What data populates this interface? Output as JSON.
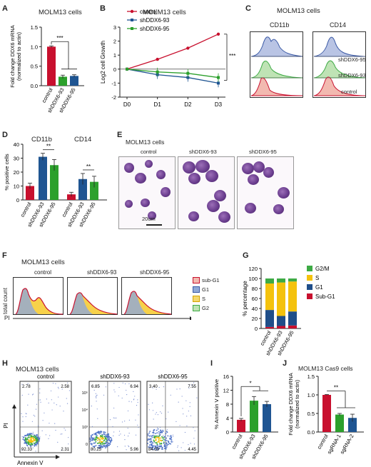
{
  "labels": {
    "A": "A",
    "B": "B",
    "C": "C",
    "D": "D",
    "E": "E",
    "F": "F",
    "G": "G",
    "H": "H",
    "I": "I",
    "J": "J"
  },
  "colors": {
    "control": "#c8102e",
    "shDDX6_93": "#2ca02c",
    "shDDX6_95": "#1f5592",
    "g1": "#1f4e89",
    "s": "#f4c20d",
    "g2m": "#3daa44",
    "subg1": "#c8102e"
  },
  "panelA": {
    "title": "MOLM13 cells",
    "chart_data": {
      "type": "bar",
      "categories": [
        "control",
        "shDDX6-93",
        "shDDX6-95"
      ],
      "values": [
        1.0,
        0.23,
        0.25
      ],
      "errors": [
        0.02,
        0.04,
        0.03
      ],
      "ylabel": "Fold change DDX6 mRNA\n(normalized to actin)",
      "ylim": [
        0,
        1.5
      ],
      "yticks": [
        "0.0",
        "0.5",
        "1.0",
        "1.5"
      ],
      "annotation": "***"
    }
  },
  "panelB": {
    "title": "MOLM13 cells",
    "chart_data": {
      "type": "line",
      "x": [
        "D0",
        "D1",
        "D2",
        "D3"
      ],
      "series": [
        {
          "name": "control",
          "values": [
            0,
            0.7,
            1.5,
            2.5
          ]
        },
        {
          "name": "shDDX6-93",
          "values": [
            0,
            -0.4,
            -0.6,
            -1.0
          ]
        },
        {
          "name": "shDDX6-95",
          "values": [
            0,
            -0.2,
            -0.3,
            -0.6
          ]
        }
      ],
      "ylabel": "Log2 cell Growth",
      "ylim": [
        -2,
        3
      ],
      "yticks": [
        "-2",
        "-1",
        "0",
        "1",
        "2",
        "3"
      ],
      "annotation": "***"
    }
  },
  "panelC": {
    "title": "MOLM13 cells",
    "markers": [
      "CD11b",
      "CD14"
    ],
    "rows": [
      "shDDX6-95",
      "shDDX6-93",
      "control"
    ]
  },
  "panelD": {
    "markers": [
      "CD11b",
      "CD14"
    ],
    "chart_data": {
      "type": "bar",
      "categories": [
        "control",
        "shDDX6-93",
        "shDDX6-95",
        "control",
        "shDDX6-93",
        "shDDX6-95"
      ],
      "groups": [
        "CD11b",
        "CD14"
      ],
      "values": [
        10,
        31,
        25,
        4,
        15,
        13
      ],
      "errors": [
        2,
        2.5,
        4,
        1.5,
        4,
        4
      ],
      "ylabel": "% positive cells",
      "ylim": [
        0,
        40
      ],
      "yticks": [
        "0",
        "10",
        "20",
        "30",
        "40"
      ],
      "annotations": [
        "**",
        "**"
      ]
    }
  },
  "panelE": {
    "title": "MOLM13 cells",
    "images": [
      "control",
      "shDDX6-93",
      "shDDX6-95"
    ],
    "scale": "20um"
  },
  "panelF": {
    "title": "MOLM13 cells",
    "histograms": [
      "control",
      "shDDX6-93",
      "shDDX6-95"
    ],
    "ylabel": "total count",
    "xlabel": "PI",
    "legend": [
      "sub-G1",
      "G1",
      "S",
      "G2"
    ]
  },
  "panelG": {
    "chart_data": {
      "type": "bar",
      "stacked": true,
      "categories": [
        "control",
        "shDDX6-93",
        "shDDX6-95"
      ],
      "series": [
        {
          "name": "Sub-G1",
          "values": [
            3,
            5,
            6
          ]
        },
        {
          "name": "G1",
          "values": [
            34,
            20,
            28
          ]
        },
        {
          "name": "S",
          "values": [
            53,
            67,
            60
          ]
        },
        {
          "name": "G2/M",
          "values": [
            10,
            8,
            6
          ]
        }
      ],
      "ylabel": "% percentage",
      "ylim": [
        0,
        120
      ],
      "yticks": [
        "0",
        "20",
        "40",
        "60",
        "80",
        "100",
        "120"
      ]
    }
  },
  "panelH": {
    "title": "MOLM13 cells",
    "plots": [
      {
        "name": "control",
        "q": [
          "2.78",
          "2.58",
          "92.33",
          "2.31"
        ]
      },
      {
        "name": "shDDX6-93",
        "q": [
          "6.85",
          "6.94",
          "80.25",
          "5.96"
        ]
      },
      {
        "name": "shDDX6-95",
        "q": [
          "3.40",
          "7.55",
          "84.59",
          "4.45"
        ]
      }
    ],
    "yticks": [
      "10⁵",
      "10⁴",
      "10³",
      "0"
    ],
    "ylabel": "PI",
    "xlabel": "Annexin V"
  },
  "panelI": {
    "chart_data": {
      "type": "bar",
      "categories": [
        "control",
        "shDDX6-93",
        "shDDX6-95"
      ],
      "values": [
        3.5,
        9,
        8
      ],
      "errors": [
        0.4,
        1.2,
        0.8
      ],
      "ylabel": "% Annexin V positive",
      "ylim": [
        0,
        16
      ],
      "yticks": [
        "0",
        "4",
        "8",
        "12",
        "16"
      ],
      "annotation": "*"
    }
  },
  "panelJ": {
    "title": "MOLM13 Cas9 cells",
    "chart_data": {
      "type": "bar",
      "categories": [
        "control",
        "sgRNA-1",
        "sgRNA-2"
      ],
      "values": [
        1.0,
        0.47,
        0.38
      ],
      "errors": [
        0.01,
        0.03,
        0.1
      ],
      "ylabel": "Fold change DDX6 mRNA\n(normalized to actin)",
      "ylim": [
        0,
        1.5
      ],
      "yticks": [
        "0.0",
        "0.5",
        "1.0",
        "1.5"
      ],
      "annotation": "**"
    }
  }
}
